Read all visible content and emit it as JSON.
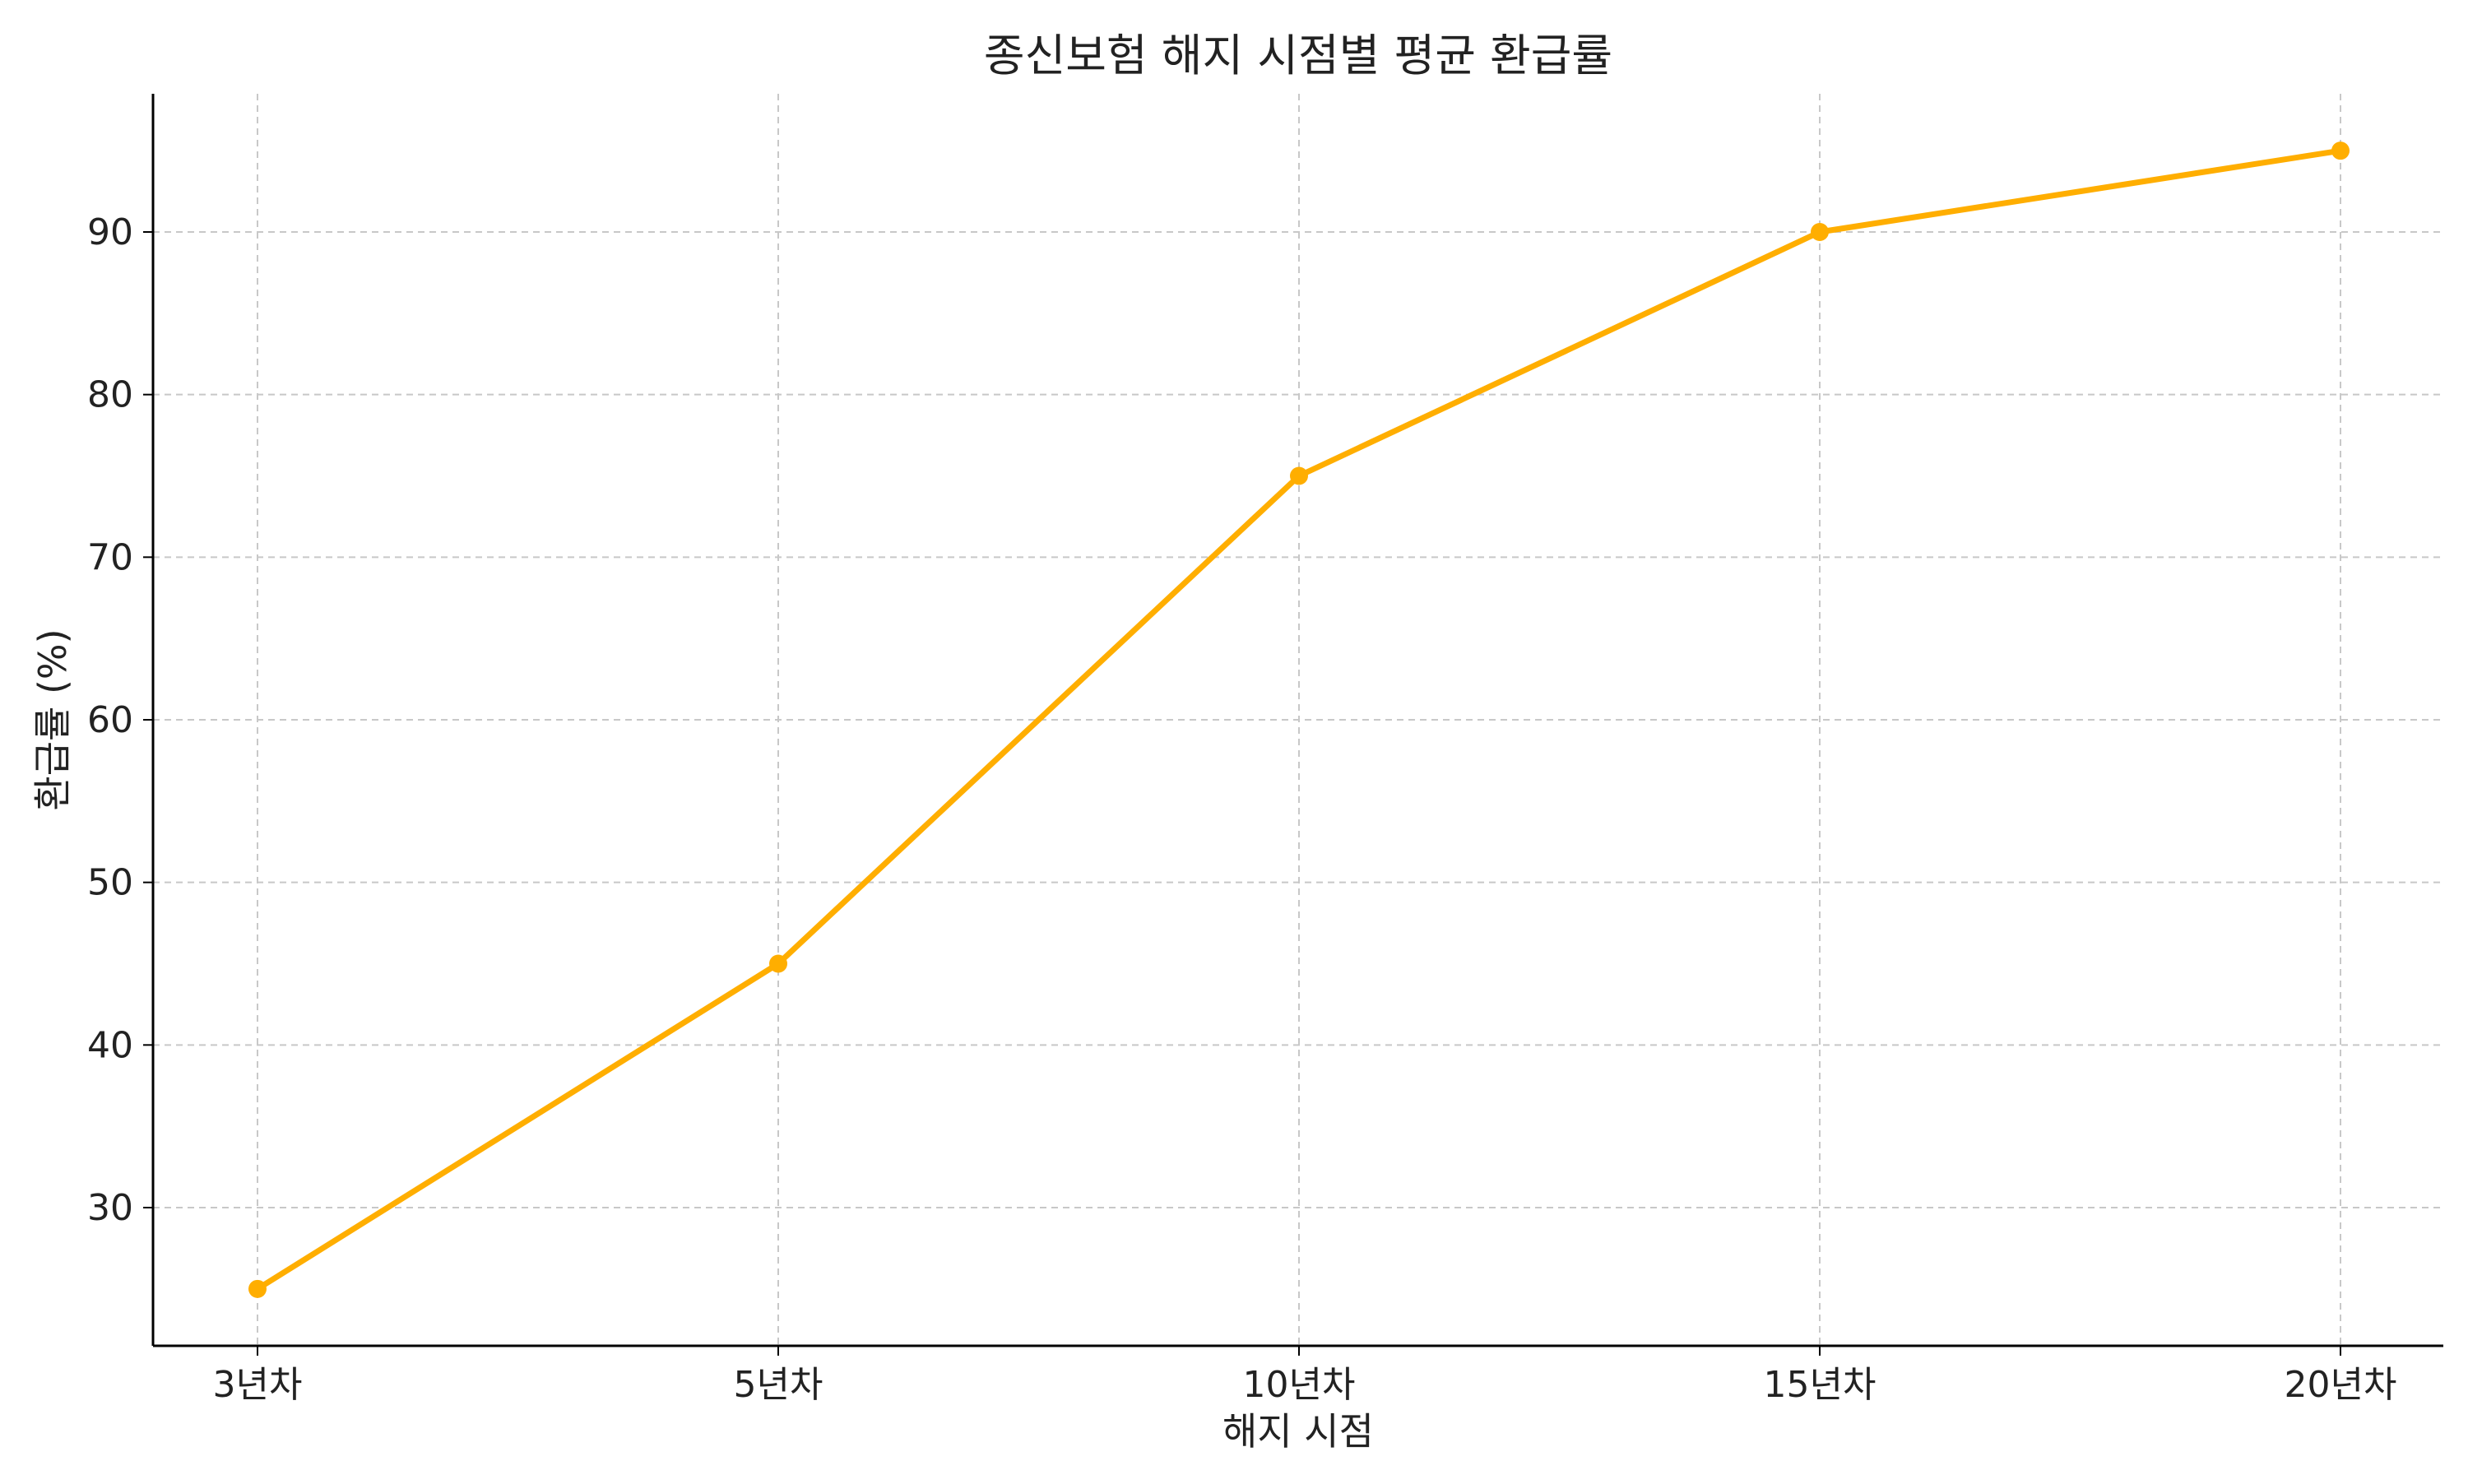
{
  "chart_data": {
    "type": "line",
    "title": "종신보험 해지 시점별 평균 환급률",
    "xlabel": "해지 시점",
    "ylabel": "환급률 (%)",
    "categories": [
      "3년차",
      "5년차",
      "10년차",
      "15년차",
      "20년차"
    ],
    "series": [
      {
        "values": [
          25,
          45,
          75,
          90,
          95
        ],
        "color": "#FFAE00"
      }
    ],
    "ylim": [
      21.5,
      98.5
    ],
    "yticks": [
      30,
      40,
      50,
      60,
      70,
      80,
      90
    ],
    "grid": true,
    "marker": "circle"
  }
}
